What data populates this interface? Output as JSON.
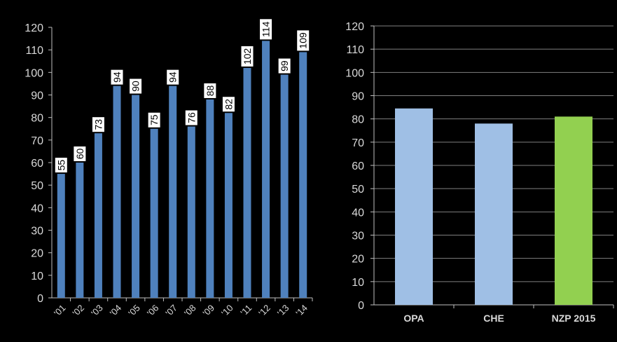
{
  "chart_data": [
    {
      "type": "bar",
      "categories": [
        "'01",
        "'02",
        "'03",
        "'04",
        "'05",
        "'06",
        "'07",
        "'08",
        "'09",
        "'10",
        "'11",
        "'12",
        "'13",
        "'14"
      ],
      "values": [
        55,
        60,
        73,
        94,
        90,
        75,
        94,
        76,
        88,
        82,
        102,
        114,
        99,
        109
      ],
      "data_labels": [
        "55",
        "60",
        "73",
        "94",
        "90",
        "75",
        "94",
        "76",
        "88",
        "82",
        "102",
        "114",
        "99",
        "109"
      ],
      "yticks": [
        "0",
        "10",
        "20",
        "30",
        "40",
        "50",
        "60",
        "70",
        "80",
        "90",
        "100",
        "110",
        "120"
      ],
      "ylim": [
        0,
        120
      ],
      "grid": false,
      "bar_color": "#4f81bd"
    },
    {
      "type": "bar",
      "categories": [
        "OPA",
        "CHE",
        "NZP 2015"
      ],
      "values": [
        84.5,
        78,
        81
      ],
      "colors": [
        "#9fbfe5",
        "#9fbfe5",
        "#92d050"
      ],
      "yticks": [
        "0",
        "10",
        "20",
        "30",
        "40",
        "50",
        "60",
        "70",
        "80",
        "90",
        "100",
        "110",
        "120"
      ],
      "ylim": [
        0,
        120
      ],
      "grid": true
    }
  ]
}
